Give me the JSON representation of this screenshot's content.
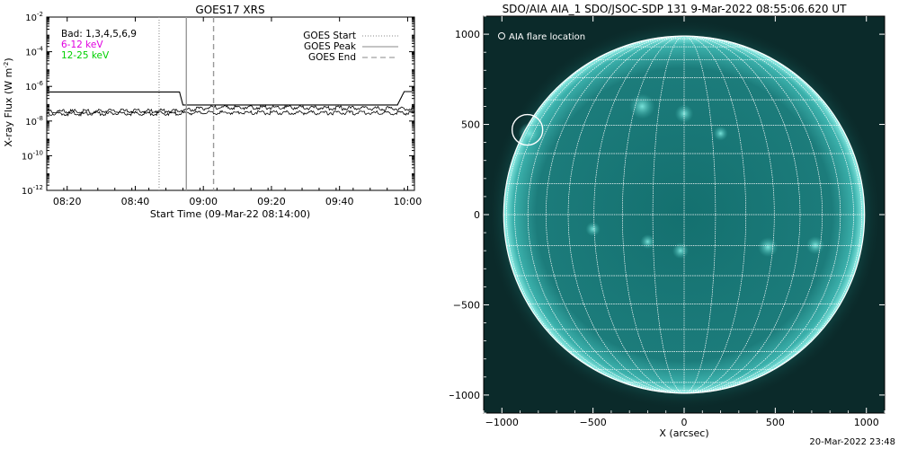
{
  "chart_data": [
    {
      "type": "line",
      "title": "GOES17 XRS",
      "xlabel": "Start Time (09-Mar-22 08:14:00)",
      "ylabel": "X-ray Flux (W m^-2)",
      "x_unit": "minutes",
      "xlim": [
        "08:14",
        "10:02"
      ],
      "yscale": "log",
      "ylim": [
        1e-12,
        0.01
      ],
      "x_tick_labels": [
        "08:20",
        "08:40",
        "09:00",
        "09:20",
        "09:40",
        "10:00"
      ],
      "y_tick_labels": [
        {
          "base": "10",
          "exp": "-12",
          "value": 1e-12
        },
        {
          "base": "10",
          "exp": "-10",
          "value": 1e-10
        },
        {
          "base": "10",
          "exp": "-8",
          "value": 1e-08
        },
        {
          "base": "10",
          "exp": "-6",
          "value": 1e-06
        },
        {
          "base": "10",
          "exp": "-4",
          "value": 0.0001
        },
        {
          "base": "10",
          "exp": "-2",
          "value": 0.01
        }
      ],
      "left_legend": [
        {
          "text": "Bad: 1,3,4,5,6,9",
          "color": "#000000"
        },
        {
          "text": "6-12 keV",
          "color": "#e000e0"
        },
        {
          "text": "12-25 keV",
          "color": "#00d000"
        }
      ],
      "right_legend": [
        {
          "text": "GOES Start",
          "style": "dotted"
        },
        {
          "text": "GOES Peak",
          "style": "solid"
        },
        {
          "text": "GOES End",
          "style": "dashed"
        }
      ],
      "markers": {
        "start": "08:47",
        "peak": "08:55",
        "end": "09:03"
      },
      "series": [
        {
          "color": "#000000",
          "points": [
            [
              "08:14",
              4.8e-07
            ],
            [
              "08:53",
              4.8e-07
            ],
            [
              "08:54",
              8.5e-08
            ],
            [
              "09:57",
              8.5e-08
            ],
            [
              "09:59",
              5e-07
            ],
            [
              "10:02",
              5e-07
            ]
          ]
        },
        {
          "color": "#000000",
          "points": [
            [
              "08:14",
              3.5e-08
            ],
            [
              "08:52",
              3.9e-08
            ],
            [
              "09:03",
              6e-08
            ],
            [
              "09:20",
              6.2e-08
            ],
            [
              "09:45",
              5.5e-08
            ],
            [
              "10:02",
              5e-08
            ]
          ]
        },
        {
          "color": "#000000",
          "points": [
            [
              "08:14",
              2.6e-08
            ],
            [
              "08:52",
              2.8e-08
            ],
            [
              "09:03",
              3.1e-08
            ],
            [
              "09:30",
              3e-08
            ],
            [
              "10:02",
              2.9e-08
            ]
          ]
        }
      ]
    },
    {
      "type": "map",
      "title": "SDO/AIA AIA_1 SDO/JSOC-SDP 131  9-Mar-2022 08:55:06.620 UT",
      "xlabel": "X (arcsec)",
      "ylabel": "",
      "xlim": [
        -1100,
        1100
      ],
      "ylim": [
        -1100,
        1100
      ],
      "x_ticks": [
        -1000,
        -500,
        0,
        500,
        1000
      ],
      "y_ticks": [
        -1000,
        -500,
        0,
        500,
        1000
      ],
      "solar_radius": 990,
      "grid_spacing_deg": 10,
      "legend": "AIA flare location",
      "flare_location": [
        -860,
        470
      ],
      "disk_color": "#1e8a8a",
      "limb_color": "#7fe8e0",
      "grid_color": "#ffffff"
    }
  ],
  "footer_timestamp": "20-Mar-2022 23:48"
}
